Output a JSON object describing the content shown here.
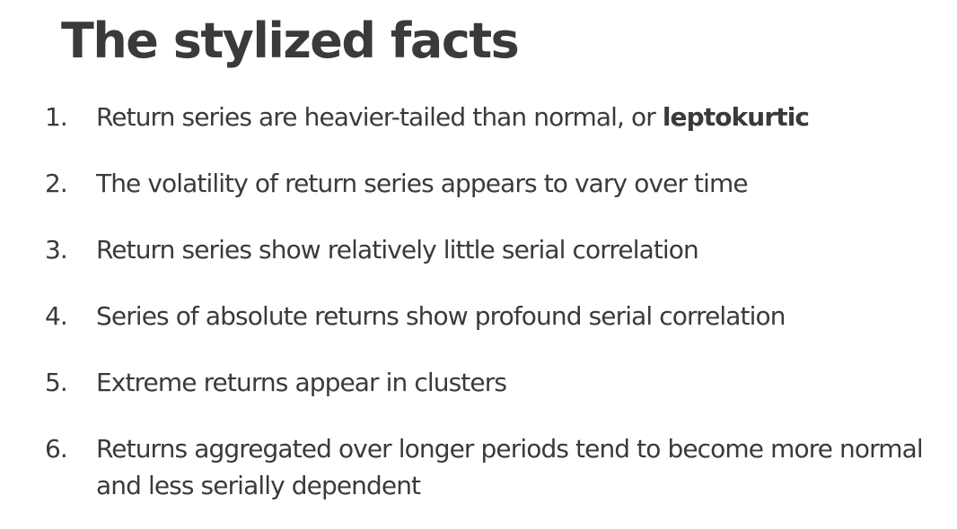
{
  "slide": {
    "title": "The stylized facts",
    "facts": [
      {
        "number": "1.",
        "text": "Return series are heavier-tailed than normal, or ",
        "emphasis": "leptokurtic"
      },
      {
        "number": "2.",
        "text": "The volatility of return series appears to vary over time"
      },
      {
        "number": "3.",
        "text": "Return series show relatively little serial correlation"
      },
      {
        "number": "4.",
        "text": "Series of absolute returns show profound serial correlation"
      },
      {
        "number": "5.",
        "text": "Extreme returns appear in clusters"
      },
      {
        "number": "6.",
        "text": "Returns aggregated over longer periods tend to become more normal and less serially dependent"
      }
    ],
    "colors": {
      "text": "#3a3a3a",
      "background": "#ffffff"
    }
  }
}
